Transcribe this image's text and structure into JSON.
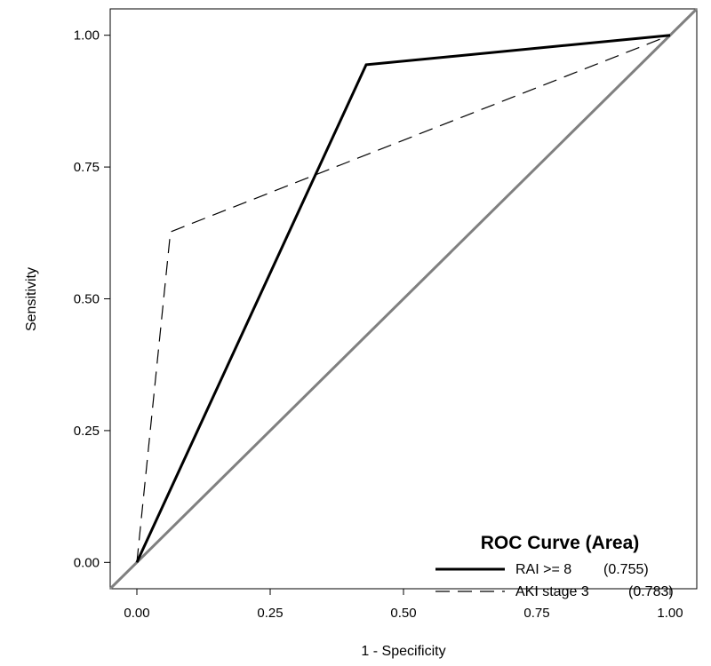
{
  "chart_data": {
    "type": "line",
    "title": "",
    "xlabel": "1 - Specificity",
    "ylabel": "Sensitivity",
    "xlim": [
      -0.05,
      1.05
    ],
    "ylim": [
      -0.05,
      1.05
    ],
    "xticks": [
      "0.00",
      "0.25",
      "0.50",
      "0.75",
      "1.00"
    ],
    "yticks": [
      "0.00",
      "0.25",
      "0.50",
      "0.75",
      "1.00"
    ],
    "xtick_values": [
      0,
      0.25,
      0.5,
      0.75,
      1
    ],
    "ytick_values": [
      0,
      0.25,
      0.5,
      0.75,
      1
    ],
    "grid": false,
    "legend": {
      "title": "ROC Curve (Area)",
      "placement": "bottom-right"
    },
    "series": [
      {
        "name": "RAI >= 8",
        "area_label": "(0.755)",
        "style": "solid",
        "color": "#000000",
        "x": [
          0,
          0.43,
          1
        ],
        "y": [
          0,
          0.944,
          1
        ]
      },
      {
        "name": "AKI stage 3",
        "area_label": "(0.783)",
        "style": "dashed",
        "color": "#000000",
        "x": [
          0,
          0.063,
          1
        ],
        "y": [
          0,
          0.627,
          1
        ]
      }
    ],
    "reference_line": {
      "x": [
        -0.05,
        1.05
      ],
      "y": [
        -0.05,
        1.05
      ],
      "color": "#808080"
    }
  }
}
